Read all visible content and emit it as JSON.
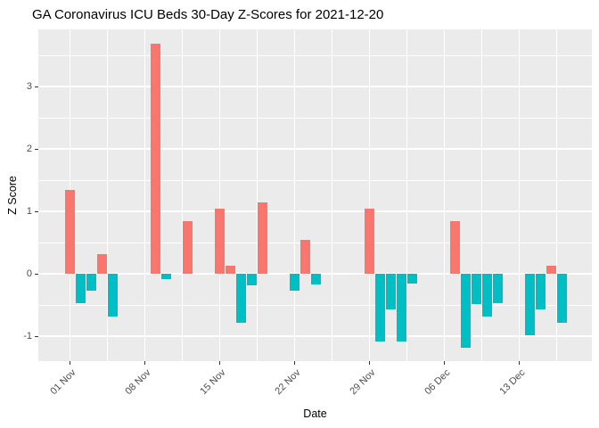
{
  "chart_data": {
    "type": "bar",
    "title": "GA Coronavirus ICU Beds 30-Day Z-Scores for 2021-12-20",
    "xlabel": "Date",
    "ylabel": "Z Score",
    "ylim": [
      -1.42,
      3.93
    ],
    "x_range_dates": [
      "2021-10-29",
      "2021-12-19"
    ],
    "grid": "on",
    "legend": "none",
    "y_major_ticks": [
      -1,
      0,
      1,
      2,
      3
    ],
    "y_minor_ticks": [
      -0.5,
      0.5,
      1.5,
      2.5,
      3.5
    ],
    "x_ticks": [
      {
        "label": "01 Nov",
        "date": "2021-11-01"
      },
      {
        "label": "08 Nov",
        "date": "2021-11-08"
      },
      {
        "label": "15 Nov",
        "date": "2021-11-15"
      },
      {
        "label": "22 Nov",
        "date": "2021-11-22"
      },
      {
        "label": "29 Nov",
        "date": "2021-11-29"
      },
      {
        "label": "06 Dec",
        "date": "2021-12-06"
      },
      {
        "label": "13 Dec",
        "date": "2021-12-13"
      }
    ],
    "x_minor_tick_dates": [
      "2021-11-04T12:00Z",
      "2021-11-11T12:00Z",
      "2021-11-18T12:00Z",
      "2021-11-25T12:00Z",
      "2021-12-02T12:00Z",
      "2021-12-09T12:00Z",
      "2021-12-16T12:00Z"
    ],
    "bars": [
      {
        "date": "2021-11-01",
        "value": 1.34
      },
      {
        "date": "2021-11-02",
        "value": -0.47
      },
      {
        "date": "2021-11-03",
        "value": -0.27
      },
      {
        "date": "2021-11-04",
        "value": 0.32
      },
      {
        "date": "2021-11-05",
        "value": -0.68
      },
      {
        "date": "2021-11-09",
        "value": 3.69
      },
      {
        "date": "2021-11-10",
        "value": -0.09
      },
      {
        "date": "2021-11-12",
        "value": 0.84
      },
      {
        "date": "2021-11-15",
        "value": 1.05
      },
      {
        "date": "2021-11-16",
        "value": 0.13
      },
      {
        "date": "2021-11-17",
        "value": -0.79
      },
      {
        "date": "2021-11-18",
        "value": -0.18
      },
      {
        "date": "2021-11-19",
        "value": 1.14
      },
      {
        "date": "2021-11-22",
        "value": -0.27
      },
      {
        "date": "2021-11-23",
        "value": 0.54
      },
      {
        "date": "2021-11-24",
        "value": -0.17
      },
      {
        "date": "2021-11-29",
        "value": 1.05
      },
      {
        "date": "2021-11-30",
        "value": -1.09
      },
      {
        "date": "2021-12-01",
        "value": -0.57
      },
      {
        "date": "2021-12-02",
        "value": -1.09
      },
      {
        "date": "2021-12-03",
        "value": -0.16
      },
      {
        "date": "2021-12-07",
        "value": 0.84
      },
      {
        "date": "2021-12-08",
        "value": -1.19
      },
      {
        "date": "2021-12-09",
        "value": -0.48
      },
      {
        "date": "2021-12-10",
        "value": -0.68
      },
      {
        "date": "2021-12-11",
        "value": -0.47
      },
      {
        "date": "2021-12-14",
        "value": -0.99
      },
      {
        "date": "2021-12-15",
        "value": -0.57
      },
      {
        "date": "2021-12-16",
        "value": 0.13
      },
      {
        "date": "2021-12-17",
        "value": -0.79
      }
    ],
    "colors": {
      "positive": "#F8766D",
      "negative": "#00BFC4",
      "panel_background": "#EBEBEB",
      "gridline": "#FFFFFF",
      "tick_mark": "#333333",
      "axis_text": "#4D4D4D",
      "title_text": "#000000"
    }
  }
}
